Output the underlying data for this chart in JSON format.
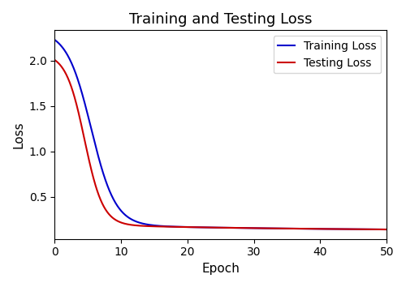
{
  "title": "Training and Testing Loss",
  "xlabel": "Epoch",
  "ylabel": "Loss",
  "xlim": [
    0,
    50
  ],
  "training_color": "#0000cc",
  "testing_color": "#cc0000",
  "training_label": "Training Loss",
  "testing_label": "Testing Loss",
  "legend_loc": "upper right",
  "linewidth": 1.5,
  "title_fontsize": 13,
  "axis_label_fontsize": 11,
  "tick_fontsize": 10,
  "yticks": [
    0.5,
    1.0,
    1.5,
    2.0
  ],
  "xticks": [
    0,
    10,
    20,
    30,
    40,
    50
  ]
}
